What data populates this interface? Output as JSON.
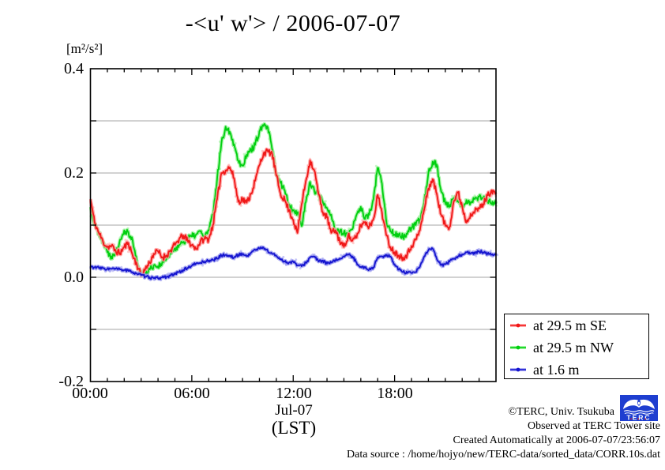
{
  "chart_data": {
    "type": "line",
    "title": "-<u' w'> / 2006-07-07",
    "y_unit_label": "[m²/s²]",
    "x_date_label": "Jul-07",
    "x_timezone_label": "(LST)",
    "ylim": [
      -0.2,
      0.4
    ],
    "y_tick_labels": [
      "0.4",
      "0.2",
      "0.0",
      "-0.2"
    ],
    "y_tick_values": [
      0.4,
      0.2,
      0.0,
      -0.2
    ],
    "y_grid_values": [
      0.3,
      0.2,
      0.1,
      0.0,
      -0.1
    ],
    "x_range_hours": [
      0,
      24
    ],
    "x_tick_labels": [
      "00:00",
      "06:00",
      "12:00",
      "18:00"
    ],
    "x_tick_hours": [
      0,
      6,
      12,
      18
    ],
    "x_minor_tick_step_hours": 1,
    "grid": "horizontal-only",
    "legend_position": "outside-right-bottom",
    "x_start_hour": 0,
    "x_step_hours": 0.25,
    "series": [
      {
        "name": "at 29.5 m SE",
        "color": "#f01818",
        "halo": "#ff9a9a",
        "values": [
          0.15,
          0.105,
          0.085,
          0.068,
          0.058,
          0.06,
          0.05,
          0.046,
          0.058,
          0.066,
          0.042,
          0.024,
          0.004,
          0.016,
          0.028,
          0.045,
          0.05,
          0.038,
          0.042,
          0.052,
          0.062,
          0.073,
          0.08,
          0.07,
          0.062,
          0.054,
          0.068,
          0.074,
          0.073,
          0.1,
          0.15,
          0.2,
          0.205,
          0.211,
          0.19,
          0.145,
          0.15,
          0.143,
          0.16,
          0.185,
          0.215,
          0.238,
          0.241,
          0.237,
          0.195,
          0.16,
          0.148,
          0.128,
          0.11,
          0.085,
          0.14,
          0.185,
          0.224,
          0.205,
          0.16,
          0.125,
          0.115,
          0.085,
          0.09,
          0.07,
          0.058,
          0.08,
          0.07,
          0.076,
          0.1,
          0.106,
          0.097,
          0.112,
          0.158,
          0.125,
          0.082,
          0.058,
          0.048,
          0.042,
          0.038,
          0.044,
          0.06,
          0.072,
          0.09,
          0.13,
          0.17,
          0.188,
          0.16,
          0.12,
          0.1,
          0.096,
          0.145,
          0.163,
          0.136,
          0.105,
          0.122,
          0.126,
          0.132,
          0.14,
          0.157,
          0.167,
          0.159
        ]
      },
      {
        "name": "at 29.5 m NW",
        "color": "#00cf10",
        "halo": "#8df08d",
        "values": [
          0.135,
          0.1,
          0.086,
          0.068,
          0.048,
          0.04,
          0.048,
          0.072,
          0.09,
          0.086,
          0.07,
          0.028,
          0.006,
          0.008,
          0.015,
          0.023,
          0.021,
          0.028,
          0.036,
          0.045,
          0.055,
          0.062,
          0.068,
          0.075,
          0.078,
          0.082,
          0.088,
          0.078,
          0.09,
          0.12,
          0.19,
          0.256,
          0.289,
          0.279,
          0.255,
          0.224,
          0.214,
          0.235,
          0.244,
          0.254,
          0.28,
          0.29,
          0.287,
          0.246,
          0.196,
          0.181,
          0.166,
          0.14,
          0.128,
          0.125,
          0.098,
          0.145,
          0.183,
          0.166,
          0.159,
          0.145,
          0.133,
          0.12,
          0.088,
          0.086,
          0.086,
          0.08,
          0.092,
          0.12,
          0.135,
          0.112,
          0.12,
          0.15,
          0.21,
          0.18,
          0.11,
          0.088,
          0.082,
          0.083,
          0.077,
          0.083,
          0.095,
          0.1,
          0.11,
          0.145,
          0.2,
          0.222,
          0.216,
          0.165,
          0.143,
          0.135,
          0.152,
          0.146,
          0.136,
          0.148,
          0.144,
          0.15,
          0.155,
          0.152,
          0.148,
          0.14,
          0.141
        ]
      },
      {
        "name": "at 1.6 m",
        "color": "#1515cf",
        "halo": "#9494ef",
        "values": [
          0.02,
          0.019,
          0.018,
          0.017,
          0.016,
          0.016,
          0.016,
          0.015,
          0.014,
          0.012,
          0.01,
          0.007,
          0.004,
          0.001,
          0.0,
          -0.002,
          -0.002,
          0.0,
          0.001,
          0.003,
          0.006,
          0.01,
          0.014,
          0.018,
          0.022,
          0.026,
          0.028,
          0.03,
          0.032,
          0.033,
          0.036,
          0.042,
          0.043,
          0.04,
          0.038,
          0.043,
          0.045,
          0.04,
          0.047,
          0.053,
          0.055,
          0.057,
          0.05,
          0.045,
          0.041,
          0.035,
          0.03,
          0.028,
          0.03,
          0.023,
          0.021,
          0.028,
          0.038,
          0.04,
          0.03,
          0.032,
          0.026,
          0.028,
          0.032,
          0.036,
          0.04,
          0.043,
          0.04,
          0.028,
          0.02,
          0.018,
          0.015,
          0.019,
          0.038,
          0.04,
          0.041,
          0.04,
          0.025,
          0.015,
          0.01,
          0.008,
          0.008,
          0.01,
          0.02,
          0.04,
          0.052,
          0.055,
          0.035,
          0.023,
          0.025,
          0.03,
          0.035,
          0.04,
          0.044,
          0.048,
          0.046,
          0.045,
          0.05,
          0.048,
          0.045,
          0.044,
          0.042
        ]
      }
    ]
  },
  "footer": {
    "copyright": "©TERC, Univ. Tsukuba",
    "observed": "Observed at TERC Tower site",
    "created": "Created Automatically at 2006-07-07/23:56:07",
    "data_source": "Data source : /home/hojyo/new/TERC-data/sorted_data/CORR.10s.dat"
  },
  "logo": {
    "text": "TERC",
    "color": "#1e3ed0"
  }
}
